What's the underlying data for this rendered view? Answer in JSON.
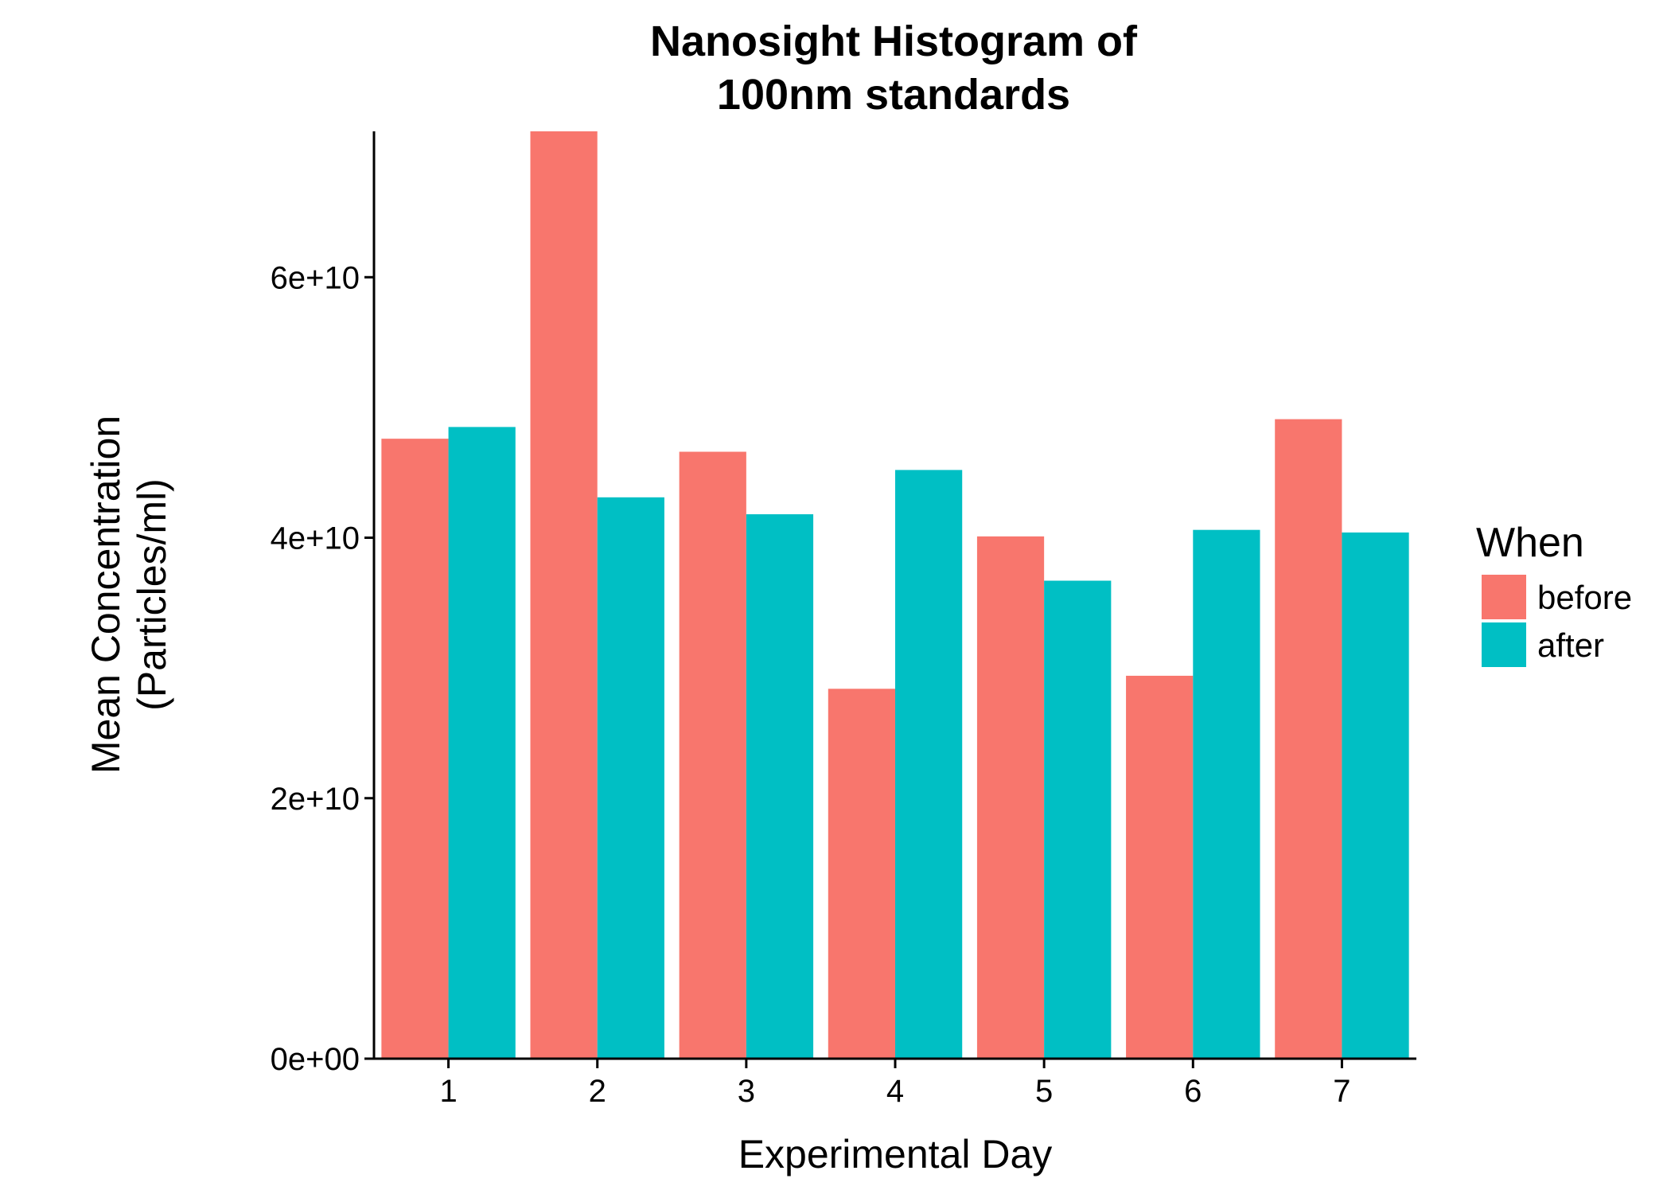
{
  "chart_data": {
    "type": "bar",
    "title": [
      "Nanosight Histogram of",
      "100nm standards"
    ],
    "xlabel": "Experimental Day",
    "ylabel": [
      "Mean Concentration",
      "(Particles/ml)"
    ],
    "categories": [
      "1",
      "2",
      "3",
      "4",
      "5",
      "6",
      "7"
    ],
    "series": [
      {
        "name": "before",
        "color": "#F8766D",
        "values": [
          47600000000.0,
          71200000000.0,
          46600000000.0,
          28400000000.0,
          40100000000.0,
          29400000000.0,
          49100000000.0
        ]
      },
      {
        "name": "after",
        "color": "#00BFC4",
        "values": [
          48500000000.0,
          43100000000.0,
          41800000000.0,
          45200000000.0,
          36700000000.0,
          40600000000.0,
          40400000000.0
        ]
      }
    ],
    "ylim": [
      0,
      71200000000.0
    ],
    "yticks": [
      0,
      20000000000.0,
      40000000000.0,
      60000000000.0
    ],
    "ytick_labels": [
      "0e+00",
      "2e+10",
      "4e+10",
      "6e+10"
    ],
    "legend": {
      "title": "When",
      "position": "right"
    },
    "grid": false
  }
}
